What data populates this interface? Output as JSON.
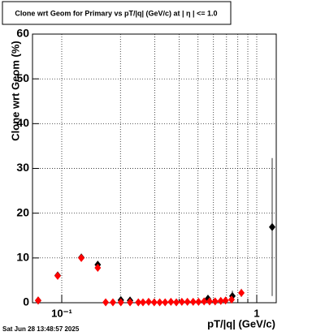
{
  "chart_data": {
    "type": "scatter",
    "title": "Clone wrt Geom for Primary vs pT/|q| (GeV/c) at |  η  | <= 1.0",
    "x_label": "pT/|q| (GeV/c)",
    "y_label": "Clone wrt Geom (%)",
    "timestamp": "Sat Jun 28 13:48:57 2025",
    "log_x": true,
    "grid": true,
    "xlim": [
      0.0708,
      1.259
    ],
    "ylim": [
      0,
      60
    ],
    "xticks": [
      {
        "value": 0.1,
        "label": "10⁻¹"
      },
      1
    ],
    "xminor": [
      0.2,
      0.3,
      0.4,
      0.5,
      0.6,
      0.7,
      0.8,
      0.9
    ],
    "yticks": [
      0,
      10,
      20,
      30,
      40,
      50,
      60
    ],
    "series": [
      {
        "name": "Black",
        "color": "#000000",
        "x": [
          0.0757,
          0.0953,
          0.126,
          0.153,
          0.201,
          0.224,
          0.562,
          0.75,
          1.2
        ],
        "values": [
          0.5,
          6.1,
          10.1,
          8.5,
          0.6,
          0.5,
          0.9,
          1.5,
          16.9
        ],
        "yerr": [
          0.3,
          0.4,
          0.6,
          0.8,
          0.5,
          0.4,
          0.8,
          1.2,
          15.4
        ]
      },
      {
        "name": "Red",
        "color": "#ff0000",
        "x": [
          0.0757,
          0.0953,
          0.126,
          0.153,
          0.168,
          0.183,
          0.201,
          0.224,
          0.247,
          0.261,
          0.279,
          0.298,
          0.318,
          0.339,
          0.363,
          0.387,
          0.413,
          0.441,
          0.472,
          0.503,
          0.537,
          0.573,
          0.612,
          0.654,
          0.692,
          0.743,
          0.834
        ],
        "values": [
          0.5,
          6.0,
          10.0,
          7.8,
          0.1,
          0.1,
          0.1,
          0.1,
          0.1,
          0.1,
          0.2,
          0.1,
          0.1,
          0.1,
          0.2,
          0.1,
          0.2,
          0.2,
          0.2,
          0.2,
          0.3,
          0.3,
          0.3,
          0.4,
          0.5,
          0.7,
          2.2
        ],
        "yerr": [
          0.3,
          0.4,
          0.6,
          0.7,
          0.1,
          0.1,
          0.1,
          0.1,
          0.1,
          0.1,
          0.1,
          0.1,
          0.1,
          0.1,
          0.1,
          0.1,
          0.1,
          0.1,
          0.1,
          0.1,
          0.2,
          0.2,
          0.2,
          0.2,
          0.3,
          0.4,
          0.9
        ]
      }
    ]
  }
}
